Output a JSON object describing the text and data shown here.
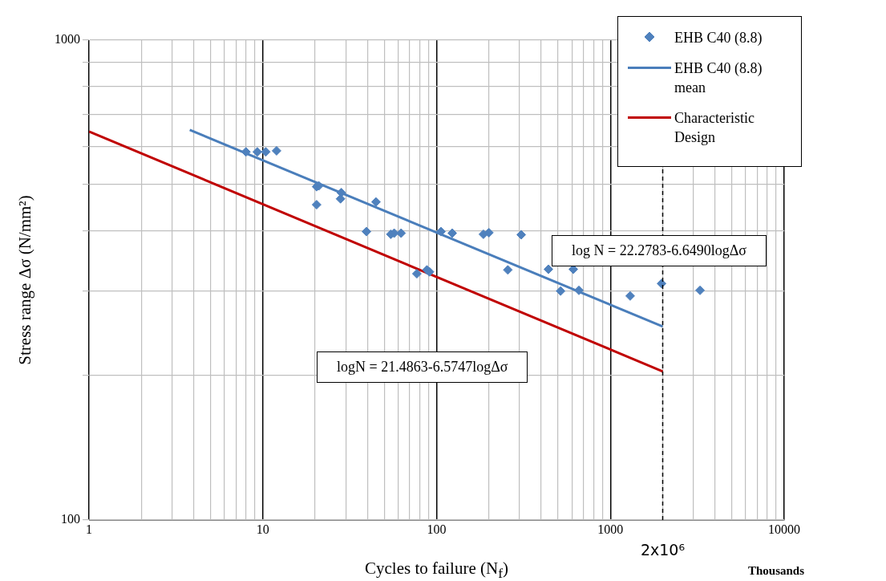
{
  "chart_data": {
    "type": "scatter",
    "xlabel": "Cycles to failure (N$_{f}$)",
    "ylabel": "Stress range Δσ (N/mm²)",
    "log": "xy",
    "grid": true,
    "legend": "top right",
    "marker": "diamond",
    "xlim": [
      1,
      10000
    ],
    "ylim": [
      100,
      1000
    ],
    "xticks": [
      1,
      {
        "value": 2,
        "label": null
      },
      {
        "value": 3,
        "label": null
      },
      {
        "value": 4,
        "label": null
      },
      {
        "value": 5,
        "label": null
      },
      {
        "value": 6,
        "label": null
      },
      {
        "value": 7,
        "label": null
      },
      {
        "value": 8,
        "label": null
      },
      {
        "value": 9,
        "label": null
      },
      10,
      {
        "value": 20,
        "label": null
      },
      {
        "value": 30,
        "label": null
      },
      {
        "value": 40,
        "label": null
      },
      {
        "value": 50,
        "label": null
      },
      {
        "value": 60,
        "label": null
      },
      {
        "value": 70,
        "label": null
      },
      {
        "value": 80,
        "label": null
      },
      {
        "value": 90,
        "label": null
      },
      100,
      {
        "value": 200,
        "label": null
      },
      {
        "value": 300,
        "label": null
      },
      {
        "value": 400,
        "label": null
      },
      {
        "value": 500,
        "label": null
      },
      {
        "value": 600,
        "label": null
      },
      {
        "value": 700,
        "label": null
      },
      {
        "value": 800,
        "label": null
      },
      {
        "value": 900,
        "label": null
      },
      1000,
      {
        "value": 2000,
        "label": null
      },
      {
        "value": 3000,
        "label": null
      },
      {
        "value": 4000,
        "label": null
      },
      {
        "value": 5000,
        "label": null
      },
      {
        "value": 6000,
        "label": null
      },
      {
        "value": 7000,
        "label": null
      },
      {
        "value": 8000,
        "label": null
      },
      {
        "value": 9000,
        "label": null
      },
      10000
    ],
    "yticks": [
      100,
      {
        "value": 200,
        "label": null
      },
      {
        "value": 300,
        "label": null
      },
      {
        "value": 400,
        "label": null
      },
      {
        "value": 500,
        "label": null
      },
      {
        "value": 600,
        "label": null
      },
      {
        "value": 700,
        "label": null
      },
      {
        "value": 800,
        "label": null
      },
      {
        "value": 900,
        "label": null
      },
      1000
    ],
    "series": [
      {
        "name": "EHB C40 (8.8)",
        "color": "#4f81bd",
        "x": [
          8.0,
          9.3,
          10.4,
          12.0,
          20.4,
          21,
          20.4,
          28.3,
          28,
          44.8,
          39.5,
          54.5,
          57,
          62.5,
          77,
          88,
          91,
          106,
          123,
          186,
          200,
          307,
          257,
          440,
          612,
          517,
          659,
          1300,
          1970,
          3280
        ],
        "values": [
          585,
          585,
          585,
          588,
          495,
          497,
          454,
          481,
          467,
          460,
          399,
          394,
          396,
          396,
          326,
          332,
          329,
          399,
          396,
          394,
          397,
          393,
          332,
          333,
          333,
          300,
          301,
          293,
          311,
          301
        ]
      },
      {
        "name": "EHB C40 (8.8) mean",
        "type": "line",
        "marker": "none",
        "color": "#4a7ebb",
        "x": [
          3.8,
          2000
        ],
        "values": [
          650,
          253
        ]
      },
      {
        "name": "Characteristic Design",
        "type": "line",
        "marker": "none",
        "color": "#c00000",
        "x": [
          1,
          2000
        ],
        "values": [
          645,
          204
        ]
      }
    ],
    "ref_lines": [
      {
        "axis": "x",
        "value": 2000,
        "label": "2x10⁶",
        "color": "#000000",
        "line_style": "dashed"
      }
    ],
    "annotations": [
      "log N = 22.2783-6.6490logΔσ",
      "logN = 21.4863-6.5747logΔσ",
      "Thousands"
    ]
  }
}
